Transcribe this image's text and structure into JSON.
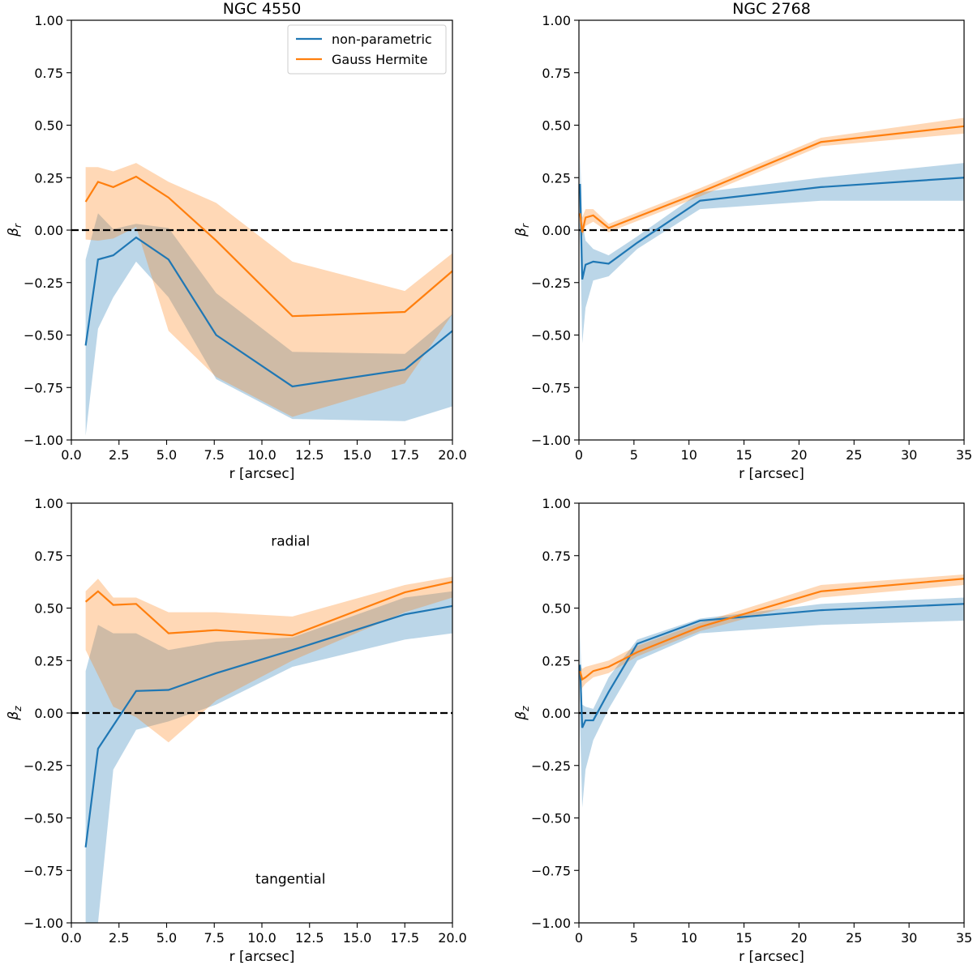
{
  "colors": {
    "nonparam": "#1f77b4",
    "gh": "#ff7f0e",
    "nonparam_band": "#1f77b4",
    "gh_band": "#ff7f0e"
  },
  "legend": {
    "nonparam_label": "non-parametric",
    "gh_label": "Gauss Hermite"
  },
  "chart_data": [
    {
      "type": "line",
      "title": "NGC 4550",
      "xlabel": "r [arcsec]",
      "ylabel": "βr",
      "ylabel_main": "β",
      "ylabel_sub": "r",
      "xlim": [
        0,
        20
      ],
      "ylim": [
        -1,
        1
      ],
      "xticks": [
        0,
        2.5,
        5,
        7.5,
        10,
        12.5,
        15,
        17.5,
        20
      ],
      "xtick_labels": [
        "0.0",
        "2.5",
        "5.0",
        "7.5",
        "10.0",
        "12.5",
        "15.0",
        "17.5",
        "20.0"
      ],
      "yticks": [
        -1,
        -0.75,
        -0.5,
        -0.25,
        0,
        0.25,
        0.5,
        0.75,
        1
      ],
      "ytick_labels": [
        "−1.00",
        "−0.75",
        "−0.50",
        "−0.25",
        "0.00",
        "0.25",
        "0.50",
        "0.75",
        "1.00"
      ],
      "zero_line": true,
      "legend": true,
      "annotations": [],
      "series": [
        {
          "name": "non-parametric",
          "x": [
            0.75,
            1.4,
            2.2,
            3.4,
            5.1,
            7.6,
            11.6,
            17.5,
            20
          ],
          "y": [
            -0.55,
            -0.14,
            -0.12,
            -0.035,
            -0.14,
            -0.5,
            -0.745,
            -0.665,
            -0.48
          ],
          "lower": [
            -0.98,
            -0.47,
            -0.32,
            -0.15,
            -0.32,
            -0.71,
            -0.9,
            -0.91,
            -0.84
          ],
          "upper": [
            -0.14,
            0.08,
            0.005,
            0.03,
            0.01,
            -0.3,
            -0.58,
            -0.59,
            -0.4
          ]
        },
        {
          "name": "Gauss Hermite",
          "x": [
            0.75,
            1.4,
            2.2,
            3.4,
            5.1,
            7.6,
            11.6,
            17.5,
            20
          ],
          "y": [
            0.135,
            0.23,
            0.205,
            0.255,
            0.155,
            -0.05,
            -0.41,
            -0.39,
            -0.195
          ],
          "lower": [
            -0.045,
            -0.05,
            -0.04,
            0.015,
            -0.48,
            -0.7,
            -0.89,
            -0.73,
            -0.4
          ],
          "upper": [
            0.3,
            0.3,
            0.28,
            0.32,
            0.23,
            0.13,
            -0.15,
            -0.29,
            -0.11
          ]
        }
      ]
    },
    {
      "type": "line",
      "title": "NGC 2768",
      "xlabel": "r [arcsec]",
      "ylabel": "βr",
      "ylabel_main": "β",
      "ylabel_sub": "r",
      "xlim": [
        0,
        35
      ],
      "ylim": [
        -1,
        1
      ],
      "xticks": [
        0,
        5,
        10,
        15,
        20,
        25,
        30,
        35
      ],
      "xtick_labels": [
        "0",
        "5",
        "10",
        "15",
        "20",
        "25",
        "30",
        "35"
      ],
      "yticks": [
        -1,
        -0.75,
        -0.5,
        -0.25,
        0,
        0.25,
        0.5,
        0.75,
        1
      ],
      "ytick_labels": [
        "−1.00",
        "−0.75",
        "−0.50",
        "−0.25",
        "0.00",
        "0.25",
        "0.50",
        "0.75",
        "1.00"
      ],
      "zero_line": true,
      "legend": false,
      "annotations": [],
      "series": [
        {
          "name": "non-parametric",
          "x": [
            0.1,
            0.3,
            0.6,
            1.3,
            2.7,
            5.3,
            11,
            22,
            35
          ],
          "y": [
            0.22,
            -0.235,
            -0.165,
            -0.15,
            -0.16,
            -0.06,
            0.14,
            0.205,
            0.25
          ],
          "lower": [
            0.0,
            -0.54,
            -0.37,
            -0.24,
            -0.22,
            -0.09,
            0.1,
            0.14,
            0.14
          ],
          "upper": [
            0.37,
            0.04,
            -0.05,
            -0.09,
            -0.12,
            -0.03,
            0.18,
            0.25,
            0.32
          ]
        },
        {
          "name": "Gauss Hermite",
          "x": [
            0.1,
            0.3,
            0.6,
            1.3,
            2.7,
            11,
            22,
            35
          ],
          "y": [
            0.08,
            -0.01,
            0.06,
            0.07,
            0.01,
            0.18,
            0.42,
            0.495
          ],
          "lower": [
            0.0,
            -0.03,
            0.02,
            0.04,
            -0.01,
            0.16,
            0.4,
            0.46
          ],
          "upper": [
            0.12,
            0.06,
            0.1,
            0.1,
            0.03,
            0.2,
            0.44,
            0.535
          ]
        }
      ]
    },
    {
      "type": "line",
      "title": "",
      "xlabel": "r [arcsec]",
      "ylabel": "βz",
      "ylabel_main": "β",
      "ylabel_sub": "z",
      "xlim": [
        0,
        20
      ],
      "ylim": [
        -1,
        1
      ],
      "xticks": [
        0,
        2.5,
        5,
        7.5,
        10,
        12.5,
        15,
        17.5,
        20
      ],
      "xtick_labels": [
        "0.0",
        "2.5",
        "5.0",
        "7.5",
        "10.0",
        "12.5",
        "15.0",
        "17.5",
        "20.0"
      ],
      "yticks": [
        -1,
        -0.75,
        -0.5,
        -0.25,
        0,
        0.25,
        0.5,
        0.75,
        1
      ],
      "ytick_labels": [
        "−1.00",
        "−0.75",
        "−0.50",
        "−0.25",
        "0.00",
        "0.25",
        "0.50",
        "0.75",
        "1.00"
      ],
      "zero_line": true,
      "legend": false,
      "annotations": [
        {
          "text": "radial",
          "x": 11.5,
          "y": 0.82
        },
        {
          "text": "tangential",
          "x": 11.5,
          "y": -0.79
        }
      ],
      "series": [
        {
          "name": "non-parametric",
          "x": [
            0.75,
            1.4,
            2.2,
            3.4,
            5.1,
            7.6,
            11.6,
            17.5,
            20
          ],
          "y": [
            -0.64,
            -0.17,
            -0.06,
            0.105,
            0.11,
            0.19,
            0.3,
            0.47,
            0.51
          ],
          "lower": [
            -1.0,
            -1.0,
            -0.27,
            -0.08,
            -0.04,
            0.04,
            0.22,
            0.35,
            0.38
          ],
          "upper": [
            0.2,
            0.42,
            0.38,
            0.38,
            0.3,
            0.34,
            0.36,
            0.55,
            0.58
          ]
        },
        {
          "name": "Gauss Hermite",
          "x": [
            0.75,
            1.4,
            2.2,
            3.4,
            5.1,
            7.6,
            11.6,
            17.5,
            20
          ],
          "y": [
            0.53,
            0.58,
            0.515,
            0.52,
            0.38,
            0.395,
            0.37,
            0.575,
            0.625
          ],
          "lower": [
            0.3,
            0.18,
            0.03,
            -0.02,
            -0.14,
            0.06,
            0.25,
            0.48,
            0.55
          ],
          "upper": [
            0.58,
            0.64,
            0.55,
            0.55,
            0.48,
            0.48,
            0.46,
            0.61,
            0.65
          ]
        }
      ]
    },
    {
      "type": "line",
      "title": "",
      "xlabel": "r [arcsec]",
      "ylabel": "βz",
      "ylabel_main": "β",
      "ylabel_sub": "z",
      "xlim": [
        0,
        35
      ],
      "ylim": [
        -1,
        1
      ],
      "xticks": [
        0,
        5,
        10,
        15,
        20,
        25,
        30,
        35
      ],
      "xtick_labels": [
        "0",
        "5",
        "10",
        "15",
        "20",
        "25",
        "30",
        "35"
      ],
      "yticks": [
        -1,
        -0.75,
        -0.5,
        -0.25,
        0,
        0.25,
        0.5,
        0.75,
        1
      ],
      "ytick_labels": [
        "−1.00",
        "−0.75",
        "−0.50",
        "−0.25",
        "0.00",
        "0.25",
        "0.50",
        "0.75",
        "1.00"
      ],
      "zero_line": true,
      "legend": false,
      "annotations": [],
      "series": [
        {
          "name": "non-parametric",
          "x": [
            0.1,
            0.3,
            0.6,
            1.3,
            2.7,
            5.3,
            11,
            22,
            35
          ],
          "y": [
            0.23,
            -0.07,
            -0.035,
            -0.035,
            0.1,
            0.33,
            0.44,
            0.49,
            0.52
          ],
          "lower": [
            -0.05,
            -0.45,
            -0.27,
            -0.13,
            0.02,
            0.25,
            0.38,
            0.42,
            0.44
          ],
          "upper": [
            0.39,
            0.04,
            0.03,
            0.02,
            0.17,
            0.35,
            0.45,
            0.52,
            0.55
          ]
        },
        {
          "name": "Gauss Hermite",
          "x": [
            0.1,
            0.3,
            0.6,
            1.3,
            2.7,
            5.3,
            11,
            22,
            35
          ],
          "y": [
            0.2,
            0.16,
            0.17,
            0.2,
            0.22,
            0.29,
            0.41,
            0.58,
            0.64
          ],
          "lower": [
            0.05,
            0.12,
            0.14,
            0.17,
            0.19,
            0.27,
            0.39,
            0.55,
            0.61
          ],
          "upper": [
            0.23,
            0.21,
            0.22,
            0.23,
            0.25,
            0.32,
            0.43,
            0.61,
            0.66
          ]
        }
      ]
    }
  ]
}
